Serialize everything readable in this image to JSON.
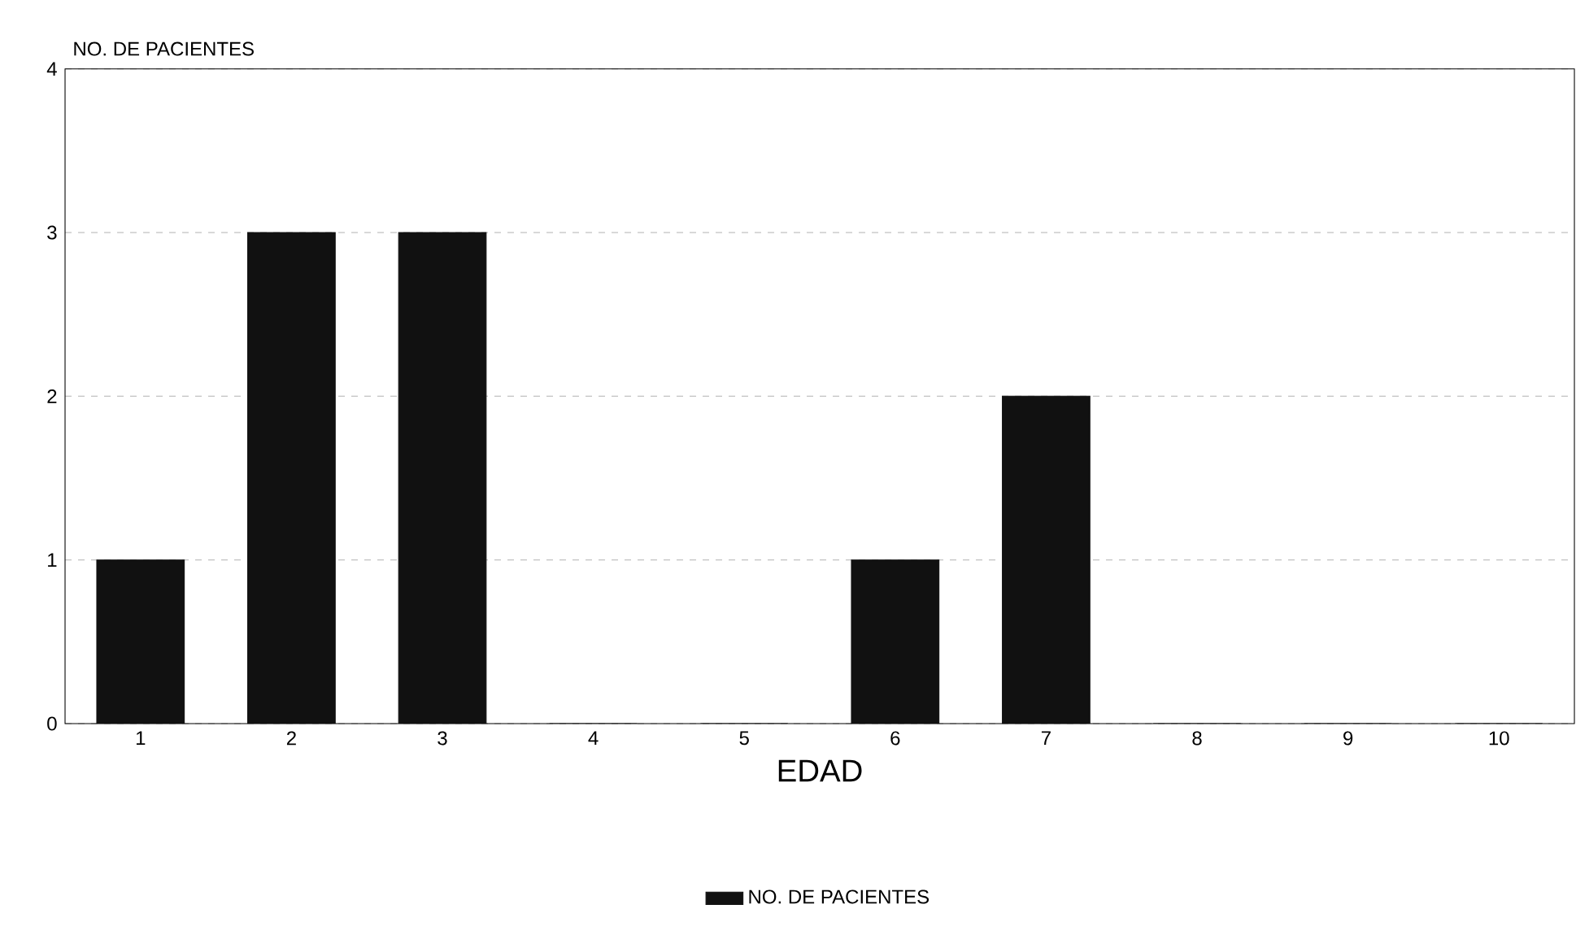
{
  "chart_data": {
    "type": "bar",
    "ylabel": "NO. DE PACIENTES",
    "xlabel": "EDAD",
    "categories": [
      "1",
      "2",
      "3",
      "4",
      "5",
      "6",
      "7",
      "8",
      "9",
      "10"
    ],
    "series": [
      {
        "name": "NO. DE PACIENTES",
        "color": "#111111",
        "values": [
          1,
          3,
          3,
          0,
          0,
          1,
          2,
          0,
          0,
          0
        ]
      }
    ],
    "ylim": [
      0,
      4
    ],
    "yticks": [
      0,
      1,
      2,
      3,
      4
    ],
    "grid": "y",
    "legend": "bottom"
  }
}
